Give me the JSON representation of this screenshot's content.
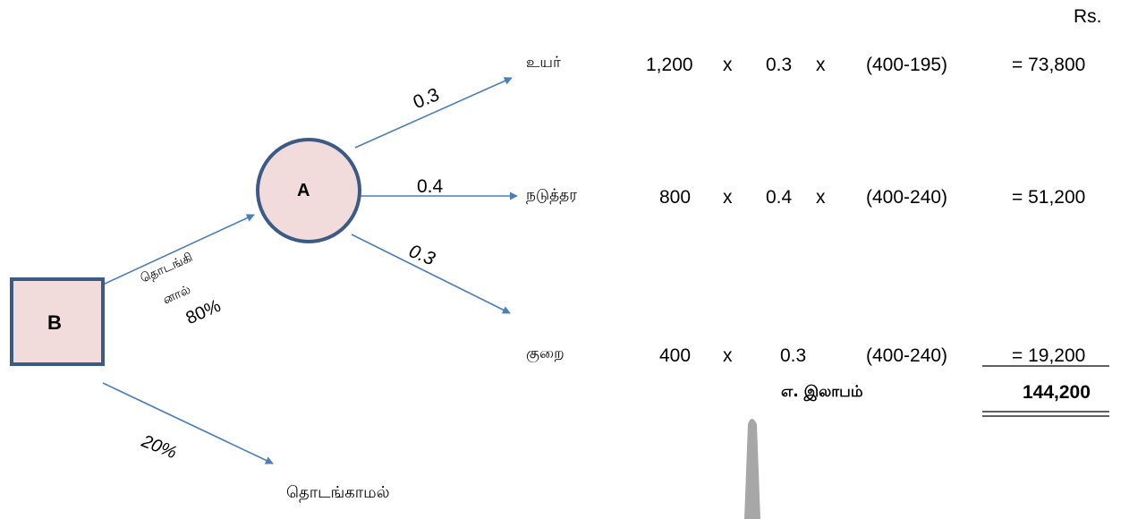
{
  "currency_label": "Rs.",
  "nodes": {
    "decision": {
      "label": "B"
    },
    "chance": {
      "label": "A"
    }
  },
  "branches": {
    "start": {
      "label": "தொடங்கி னால்",
      "label_line1": "தொடங்கி",
      "label_line2": "னால்",
      "prob": "80%"
    },
    "no_start": {
      "label": "தொடங்காமல்",
      "prob": "20%"
    },
    "high": {
      "prob": "0.3"
    },
    "medium": {
      "prob": "0.4"
    },
    "low": {
      "prob": "0.3"
    }
  },
  "outcomes": [
    {
      "name": "உயர்",
      "units": "1,200",
      "x1": "x",
      "prob": "0.3",
      "x2": "x",
      "margin": "(400-195)",
      "result": "= 73,800"
    },
    {
      "name": "நடுத்தர",
      "units": "800",
      "x1": "x",
      "prob": "0.4",
      "x2": "x",
      "margin": "(400-240)",
      "result": "= 51,200"
    },
    {
      "name": "குறை",
      "units": "400",
      "x1": "x",
      "prob": "0.3",
      "x2": "",
      "margin": "(400-240)",
      "result": "= 19,200"
    }
  ],
  "total": {
    "label": "எ. இலாபம்",
    "value": "144,200"
  },
  "colors": {
    "node_fill": "#f2dcdb",
    "node_border": "#3b5b86",
    "arrow": "#4a7ebb"
  }
}
